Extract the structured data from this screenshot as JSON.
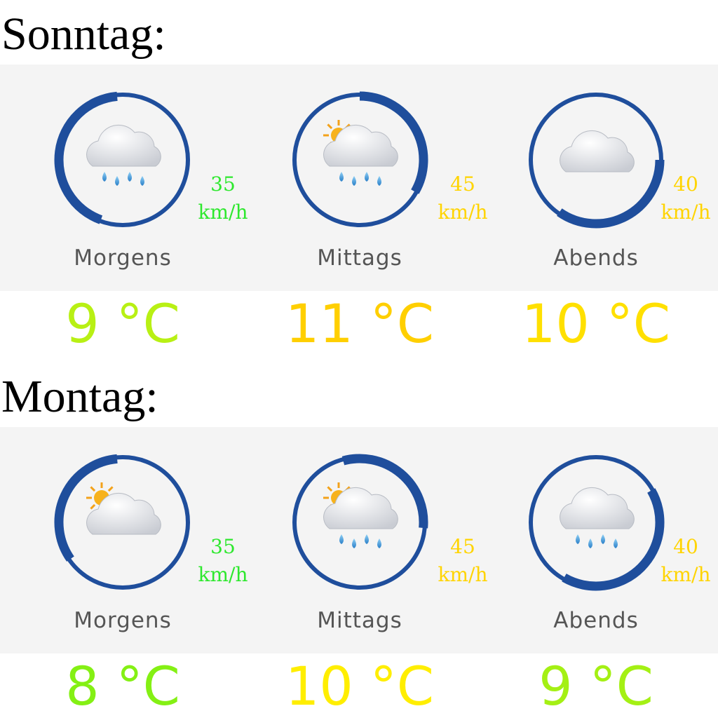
{
  "days": [
    {
      "title": "Sonntag:",
      "slots": [
        {
          "wind": 35,
          "wind_unit": "km/h",
          "wind_color": "#2ee82e",
          "label": "Morgens",
          "temperature": "9 °C",
          "temperature_color": "#b8f014"
        },
        {
          "wind": 45,
          "wind_unit": "km/h",
          "wind_color": "#ffd400",
          "label": "Mittags",
          "temperature": "11 °C",
          "temperature_color": "#ffcf00"
        },
        {
          "wind": 40,
          "wind_unit": "km/h",
          "wind_color": "#ffd400",
          "label": "Abends",
          "temperature": "10 °C",
          "temperature_color": "#ffe000"
        }
      ]
    },
    {
      "title": "Montag:",
      "slots": [
        {
          "wind": 35,
          "wind_unit": "km/h",
          "wind_color": "#2ee82e",
          "label": "Morgens",
          "temperature": "8 °C",
          "temperature_color": "#84f014"
        },
        {
          "wind": 45,
          "wind_unit": "km/h",
          "wind_color": "#ffd400",
          "label": "Mittags",
          "temperature": "10 °C",
          "temperature_color": "#ffee00"
        },
        {
          "wind": 40,
          "wind_unit": "km/h",
          "wind_color": "#ffd400",
          "label": "Abends",
          "temperature": "9 °C",
          "temperature_color": "#a4f014"
        }
      ]
    }
  ]
}
